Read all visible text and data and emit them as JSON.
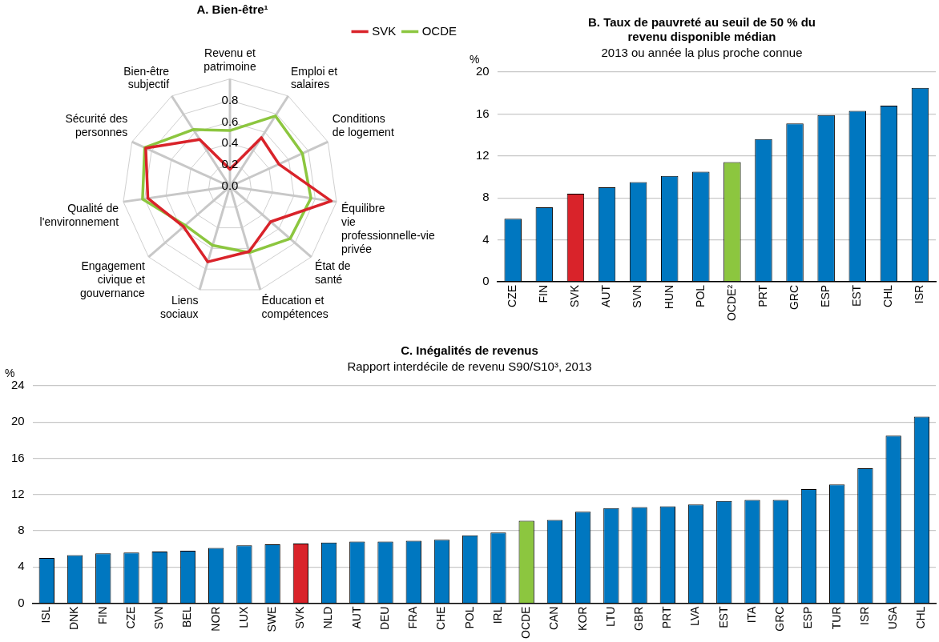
{
  "chart_data": [
    {
      "type": "radar",
      "title": "A. Bien-être¹",
      "categories": [
        "Revenu et patrimoine",
        "Emploi et salaires",
        "Conditions de logement",
        "Équilibre vie professionnelle-vie privée",
        "État de santé",
        "Éducation et compétences",
        "Liens sociaux",
        "Engagement civique et gouvernance",
        "Qualité de l'environnement",
        "Sécurité des personnes",
        "Bien-être subjectif"
      ],
      "series": [
        {
          "name": "SVK",
          "color": "#d9232a",
          "values": [
            0.16,
            0.54,
            0.5,
            0.95,
            0.5,
            0.63,
            0.73,
            0.57,
            0.77,
            0.86,
            0.52
          ]
        },
        {
          "name": "OCDE",
          "color": "#8cc63f",
          "values": [
            0.52,
            0.78,
            0.74,
            0.76,
            0.74,
            0.64,
            0.57,
            0.55,
            0.82,
            0.87,
            0.63
          ]
        }
      ],
      "ylim": [
        0,
        1
      ],
      "yticks": [
        {
          "value": 0,
          "label": "0.0"
        },
        {
          "value": 0.2,
          "label": "0.2"
        },
        {
          "value": 0.4,
          "label": "0.4"
        },
        {
          "value": 0.6,
          "label": "0.6"
        },
        {
          "value": 0.8,
          "label": "0.8"
        }
      ],
      "grid": true,
      "legend": "top right",
      "marker": "none"
    },
    {
      "type": "bar",
      "title": "B. Taux de pauvreté au seuil de 50 % du revenu disponible médian",
      "subtitle": "2013 ou année la plus proche connue",
      "ylabel": "%",
      "categories": [
        "CZE",
        "FIN",
        "SVK",
        "AUT",
        "SVN",
        "HUN",
        "POL",
        "OCDE²",
        "PRT",
        "GRC",
        "ESP",
        "EST",
        "CHL",
        "ISR"
      ],
      "values": [
        6.0,
        7.1,
        8.4,
        9.0,
        9.5,
        10.1,
        10.5,
        11.4,
        13.6,
        15.1,
        15.9,
        16.3,
        16.8,
        18.5
      ],
      "colors": [
        "#0077c0",
        "#0077c0",
        "#d9232a",
        "#0077c0",
        "#0077c0",
        "#0077c0",
        "#0077c0",
        "#8cc63f",
        "#0077c0",
        "#0077c0",
        "#0077c0",
        "#0077c0",
        "#0077c0",
        "#0077c0"
      ],
      "ylim": [
        0,
        20
      ],
      "yticks": [
        0,
        4,
        8,
        12,
        16,
        20
      ],
      "grid": "y"
    },
    {
      "type": "bar",
      "title": "C. Inégalités de revenus",
      "subtitle": "Rapport interdécile de revenu S90/S10³, 2013",
      "ylabel": "%",
      "categories": [
        "ISL",
        "DNK",
        "FIN",
        "CZE",
        "SVN",
        "BEL",
        "NOR",
        "LUX",
        "SWE",
        "SVK",
        "NLD",
        "AUT",
        "DEU",
        "FRA",
        "CHE",
        "POL",
        "IRL",
        "OCDE",
        "CAN",
        "KOR",
        "LTU",
        "GBR",
        "PRT",
        "LVA",
        "EST",
        "ITA",
        "GRC",
        "ESP",
        "TUR",
        "ISR",
        "USA",
        "CHL"
      ],
      "values": [
        5.0,
        5.3,
        5.5,
        5.6,
        5.7,
        5.8,
        6.1,
        6.4,
        6.5,
        6.6,
        6.7,
        6.8,
        6.8,
        6.9,
        7.0,
        7.5,
        7.8,
        9.1,
        9.2,
        10.1,
        10.5,
        10.6,
        10.7,
        10.9,
        11.3,
        11.4,
        11.4,
        12.6,
        13.1,
        14.9,
        18.5,
        20.6
      ],
      "colors": [
        "#0077c0",
        "#0077c0",
        "#0077c0",
        "#0077c0",
        "#0077c0",
        "#0077c0",
        "#0077c0",
        "#0077c0",
        "#0077c0",
        "#d9232a",
        "#0077c0",
        "#0077c0",
        "#0077c0",
        "#0077c0",
        "#0077c0",
        "#0077c0",
        "#0077c0",
        "#8cc63f",
        "#0077c0",
        "#0077c0",
        "#0077c0",
        "#0077c0",
        "#0077c0",
        "#0077c0",
        "#0077c0",
        "#0077c0",
        "#0077c0",
        "#0077c0",
        "#0077c0",
        "#0077c0",
        "#0077c0",
        "#0077c0"
      ],
      "ylim": [
        0,
        24
      ],
      "yticks": [
        0,
        4,
        8,
        12,
        16,
        20,
        24
      ],
      "grid": "y"
    }
  ]
}
